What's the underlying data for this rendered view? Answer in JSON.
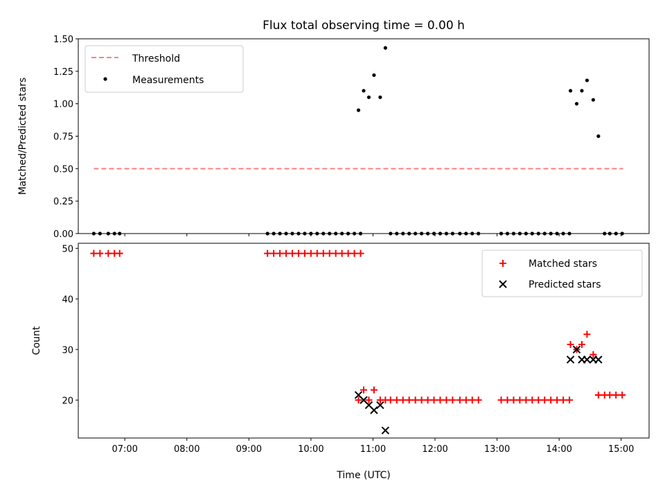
{
  "title": "Flux total observing time = 0.00 h",
  "colors": {
    "threshold": "#ff7f7f",
    "measurement": "#000000",
    "matched": "#ff0000",
    "predicted": "#000000"
  },
  "chart_data": [
    {
      "type": "scatter",
      "ylabel": "Matched/Predicted stars",
      "xlabel": "",
      "xlim": [
        "06:15",
        "15:27"
      ],
      "ylim": [
        0,
        1.5
      ],
      "yticks": [
        0.0,
        0.25,
        0.5,
        0.75,
        1.0,
        1.25,
        1.5
      ],
      "ytick_labels": [
        "0.00",
        "0.25",
        "0.50",
        "0.75",
        "1.00",
        "1.25",
        "1.50"
      ],
      "xticks": [
        "07:00",
        "08:00",
        "09:00",
        "10:00",
        "11:00",
        "12:00",
        "13:00",
        "14:00",
        "15:00"
      ],
      "xtick_labels_shown": false,
      "legend": {
        "position": "top-left",
        "entries": [
          "Threshold",
          "Measurements"
        ]
      },
      "series": [
        {
          "name": "Threshold",
          "kind": "line",
          "style": "dashed",
          "points": [
            [
              "06:30",
              0.5
            ],
            [
              "15:02",
              0.5
            ]
          ]
        },
        {
          "name": "Measurements",
          "kind": "scatter",
          "points": [
            [
              "06:30",
              0
            ],
            [
              "06:36",
              0
            ],
            [
              "06:44",
              0
            ],
            [
              "06:50",
              0
            ],
            [
              "06:55",
              0
            ],
            [
              "09:18",
              0
            ],
            [
              "09:24",
              0
            ],
            [
              "09:30",
              0
            ],
            [
              "09:36",
              0
            ],
            [
              "09:42",
              0
            ],
            [
              "09:48",
              0
            ],
            [
              "09:54",
              0
            ],
            [
              "10:00",
              0
            ],
            [
              "10:06",
              0
            ],
            [
              "10:12",
              0
            ],
            [
              "10:18",
              0
            ],
            [
              "10:24",
              0
            ],
            [
              "10:30",
              0
            ],
            [
              "10:36",
              0
            ],
            [
              "10:42",
              0
            ],
            [
              "10:48",
              0
            ],
            [
              "10:46",
              0.95
            ],
            [
              "10:51",
              1.1
            ],
            [
              "10:56",
              1.05
            ],
            [
              "11:01",
              1.22
            ],
            [
              "11:07",
              1.05
            ],
            [
              "11:12",
              1.43
            ],
            [
              "11:17",
              0
            ],
            [
              "11:23",
              0
            ],
            [
              "11:29",
              0
            ],
            [
              "11:35",
              0
            ],
            [
              "11:41",
              0
            ],
            [
              "11:47",
              0
            ],
            [
              "11:53",
              0
            ],
            [
              "11:59",
              0
            ],
            [
              "12:05",
              0
            ],
            [
              "12:11",
              0
            ],
            [
              "12:17",
              0
            ],
            [
              "12:24",
              0
            ],
            [
              "12:30",
              0
            ],
            [
              "12:36",
              0
            ],
            [
              "12:42",
              0
            ],
            [
              "13:04",
              0
            ],
            [
              "13:10",
              0
            ],
            [
              "13:16",
              0
            ],
            [
              "13:22",
              0
            ],
            [
              "13:28",
              0
            ],
            [
              "13:34",
              0
            ],
            [
              "13:40",
              0
            ],
            [
              "13:46",
              0
            ],
            [
              "13:52",
              0
            ],
            [
              "13:58",
              0
            ],
            [
              "14:04",
              0
            ],
            [
              "14:10",
              0
            ],
            [
              "14:11",
              1.1
            ],
            [
              "14:17",
              1.0
            ],
            [
              "14:22",
              1.1
            ],
            [
              "14:27",
              1.18
            ],
            [
              "14:33",
              1.03
            ],
            [
              "14:38",
              0.75
            ],
            [
              "14:44",
              0
            ],
            [
              "14:49",
              0
            ],
            [
              "14:55",
              0
            ],
            [
              "15:01",
              0
            ]
          ]
        }
      ]
    },
    {
      "type": "scatter",
      "ylabel": "Count",
      "xlabel": "Time (UTC)",
      "xlim": [
        "06:15",
        "15:27"
      ],
      "ylim": [
        12.5,
        51
      ],
      "yticks": [
        20,
        30,
        40,
        50
      ],
      "xticks": [
        "07:00",
        "08:00",
        "09:00",
        "10:00",
        "11:00",
        "12:00",
        "13:00",
        "14:00",
        "15:00"
      ],
      "legend": {
        "position": "top-right",
        "entries": [
          "Matched stars",
          "Predicted stars"
        ]
      },
      "series": [
        {
          "name": "Matched stars",
          "marker": "plus",
          "points": [
            [
              "06:30",
              49
            ],
            [
              "06:36",
              49
            ],
            [
              "06:44",
              49
            ],
            [
              "06:50",
              49
            ],
            [
              "06:55",
              49
            ],
            [
              "09:18",
              49
            ],
            [
              "09:24",
              49
            ],
            [
              "09:30",
              49
            ],
            [
              "09:36",
              49
            ],
            [
              "09:42",
              49
            ],
            [
              "09:48",
              49
            ],
            [
              "09:54",
              49
            ],
            [
              "10:00",
              49
            ],
            [
              "10:06",
              49
            ],
            [
              "10:12",
              49
            ],
            [
              "10:18",
              49
            ],
            [
              "10:24",
              49
            ],
            [
              "10:30",
              49
            ],
            [
              "10:36",
              49
            ],
            [
              "10:42",
              49
            ],
            [
              "10:48",
              49
            ],
            [
              "10:46",
              20
            ],
            [
              "10:51",
              22
            ],
            [
              "10:56",
              20
            ],
            [
              "11:01",
              22
            ],
            [
              "11:07",
              20
            ],
            [
              "11:12",
              20
            ],
            [
              "11:17",
              20
            ],
            [
              "11:23",
              20
            ],
            [
              "11:29",
              20
            ],
            [
              "11:35",
              20
            ],
            [
              "11:41",
              20
            ],
            [
              "11:47",
              20
            ],
            [
              "11:53",
              20
            ],
            [
              "11:59",
              20
            ],
            [
              "12:05",
              20
            ],
            [
              "12:11",
              20
            ],
            [
              "12:17",
              20
            ],
            [
              "12:24",
              20
            ],
            [
              "12:30",
              20
            ],
            [
              "12:36",
              20
            ],
            [
              "12:42",
              20
            ],
            [
              "13:04",
              20
            ],
            [
              "13:10",
              20
            ],
            [
              "13:16",
              20
            ],
            [
              "13:22",
              20
            ],
            [
              "13:28",
              20
            ],
            [
              "13:34",
              20
            ],
            [
              "13:40",
              20
            ],
            [
              "13:46",
              20
            ],
            [
              "13:52",
              20
            ],
            [
              "13:58",
              20
            ],
            [
              "14:04",
              20
            ],
            [
              "14:10",
              20
            ],
            [
              "14:11",
              31
            ],
            [
              "14:17",
              30
            ],
            [
              "14:22",
              31
            ],
            [
              "14:27",
              33
            ],
            [
              "14:33",
              29
            ],
            [
              "14:38",
              21
            ],
            [
              "14:44",
              21
            ],
            [
              "14:49",
              21
            ],
            [
              "14:55",
              21
            ],
            [
              "15:01",
              21
            ]
          ]
        },
        {
          "name": "Predicted stars",
          "marker": "x",
          "points": [
            [
              "10:46",
              21
            ],
            [
              "10:51",
              20
            ],
            [
              "10:56",
              19
            ],
            [
              "11:01",
              18
            ],
            [
              "11:07",
              19
            ],
            [
              "11:12",
              14
            ],
            [
              "14:11",
              28
            ],
            [
              "14:17",
              30
            ],
            [
              "14:22",
              28
            ],
            [
              "14:27",
              28
            ],
            [
              "14:33",
              28
            ],
            [
              "14:38",
              28
            ]
          ]
        }
      ]
    }
  ]
}
